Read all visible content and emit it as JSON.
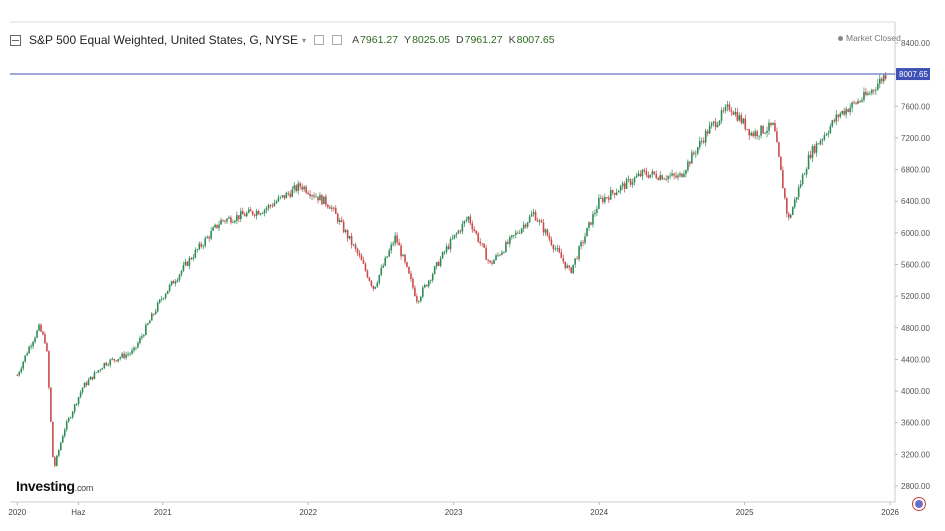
{
  "header": {
    "title": "S&P 500 Equal Weighted, United States, G, NYSE",
    "open_key": "A",
    "open": "7961.27",
    "high_key": "Y",
    "high": "8025.05",
    "low_key": "D",
    "low": "7961.27",
    "close_key": "K",
    "close": "8007.65"
  },
  "status": "Market Closed",
  "logo": {
    "brand": "Investing",
    "domain": ".com"
  },
  "colors": {
    "up": "#2e8b57",
    "down": "#c94a4a",
    "last_line": "#3f51b5",
    "last_label_bg": "#3f51b5",
    "grid": "#eeeeee",
    "axis": "#cccccc"
  },
  "chart_data": {
    "type": "candlestick",
    "ylim": [
      2600,
      8600
    ],
    "y_ticks": [
      2800,
      3200,
      3600,
      4000,
      4400,
      4800,
      5200,
      5600,
      6000,
      6400,
      6800,
      7200,
      7600,
      8000,
      8400
    ],
    "y_tick_labels": [
      "2800.00",
      "3200.00",
      "3600.00",
      "4000.00",
      "4400.00",
      "4800.00",
      "5200.00",
      "5600.00",
      "6000.00",
      "6400.00",
      "6800.00",
      "7200.00",
      "7600.00",
      "8000.00",
      "8400.00"
    ],
    "x_tick_labels": [
      "2020",
      "Haz",
      "2021",
      "2022",
      "2023",
      "2024",
      "2025",
      "2026"
    ],
    "last_value": 8007.65,
    "last_value_label": "8007.65",
    "approx_close_path": [
      {
        "t": 2020.0,
        "v": 4200
      },
      {
        "t": 2020.08,
        "v": 4550
      },
      {
        "t": 2020.15,
        "v": 4800
      },
      {
        "t": 2020.2,
        "v": 4600
      },
      {
        "t": 2020.25,
        "v": 3000
      },
      {
        "t": 2020.32,
        "v": 3500
      },
      {
        "t": 2020.45,
        "v": 4050
      },
      {
        "t": 2020.6,
        "v": 4350
      },
      {
        "t": 2020.8,
        "v": 4500
      },
      {
        "t": 2021.0,
        "v": 5200
      },
      {
        "t": 2021.2,
        "v": 5700
      },
      {
        "t": 2021.4,
        "v": 6150
      },
      {
        "t": 2021.7,
        "v": 6300
      },
      {
        "t": 2021.95,
        "v": 6600
      },
      {
        "t": 2022.15,
        "v": 6350
      },
      {
        "t": 2022.35,
        "v": 5700
      },
      {
        "t": 2022.45,
        "v": 5300
      },
      {
        "t": 2022.6,
        "v": 5950
      },
      {
        "t": 2022.75,
        "v": 5150
      },
      {
        "t": 2022.95,
        "v": 5800
      },
      {
        "t": 2023.1,
        "v": 6200
      },
      {
        "t": 2023.25,
        "v": 5600
      },
      {
        "t": 2023.55,
        "v": 6250
      },
      {
        "t": 2023.8,
        "v": 5500
      },
      {
        "t": 2024.0,
        "v": 6400
      },
      {
        "t": 2024.3,
        "v": 6750
      },
      {
        "t": 2024.55,
        "v": 6700
      },
      {
        "t": 2024.75,
        "v": 7300
      },
      {
        "t": 2024.9,
        "v": 7600
      },
      {
        "t": 2025.05,
        "v": 7250
      },
      {
        "t": 2025.2,
        "v": 7350
      },
      {
        "t": 2025.3,
        "v": 6150
      },
      {
        "t": 2025.45,
        "v": 7000
      },
      {
        "t": 2025.65,
        "v": 7500
      },
      {
        "t": 2025.85,
        "v": 7750
      },
      {
        "t": 2025.97,
        "v": 8007.65
      }
    ]
  }
}
